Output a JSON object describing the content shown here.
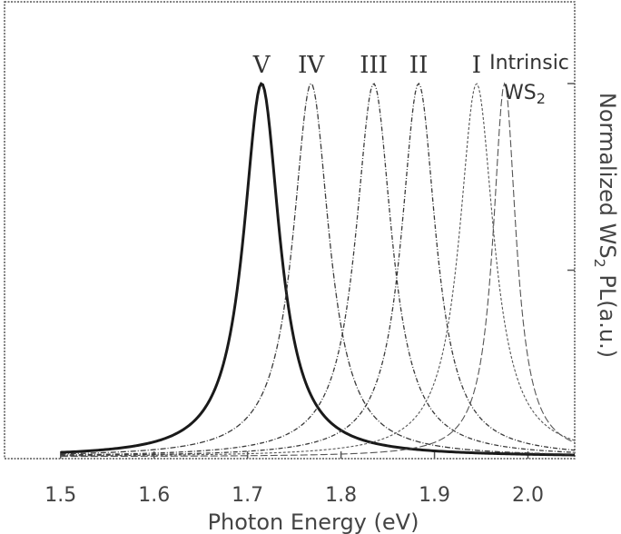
{
  "chart_data": {
    "type": "line",
    "xlabel": "Photon Energy (eV)",
    "ylabel_main": "Normalized WS",
    "ylabel_sub": "2",
    "ylabel_tail": " PL(a.u.)",
    "xlim": [
      1.44,
      2.05
    ],
    "ylim": [
      0,
      1.02
    ],
    "x_ticks": [
      1.5,
      1.6,
      1.7,
      1.8,
      1.9,
      2.0
    ],
    "x_tick_labels": [
      "1.5",
      "1.6",
      "1.7",
      "1.8",
      "1.9",
      "2.0"
    ],
    "y_ticks": [
      0.5,
      1.0
    ],
    "grid": false,
    "series": [
      {
        "name": "V",
        "center": 1.715,
        "width": 0.047,
        "color": "#1a1a1a",
        "stroke": 3.0,
        "dash": ""
      },
      {
        "name": "IV",
        "center": 1.768,
        "width": 0.047,
        "color": "#3a3a3a",
        "stroke": 1.3,
        "dash": "6,2,1,2"
      },
      {
        "name": "III",
        "center": 1.835,
        "width": 0.047,
        "color": "#3a3a3a",
        "stroke": 1.3,
        "dash": "5,2,1,2"
      },
      {
        "name": "II",
        "center": 1.883,
        "width": 0.045,
        "color": "#3a3a3a",
        "stroke": 1.3,
        "dash": "5,2,1,2"
      },
      {
        "name": "I",
        "center": 1.945,
        "width": 0.045,
        "color": "#555555",
        "stroke": 1.1,
        "dash": "3,2"
      },
      {
        "name": "Intrinsic WS2",
        "center": 1.975,
        "width": 0.03,
        "color": "#555555",
        "stroke": 1.1,
        "dash": "8,3"
      }
    ],
    "peak_labels": [
      {
        "text": "V",
        "series": "V"
      },
      {
        "text": "IV",
        "series": "IV"
      },
      {
        "text": "III",
        "series": "III"
      },
      {
        "text": "II",
        "series": "II"
      },
      {
        "text": "I",
        "series": "I"
      }
    ],
    "intrinsic_label_line1": "Intrinsic",
    "intrinsic_label_line2": "WS",
    "intrinsic_label_sub": "2"
  }
}
